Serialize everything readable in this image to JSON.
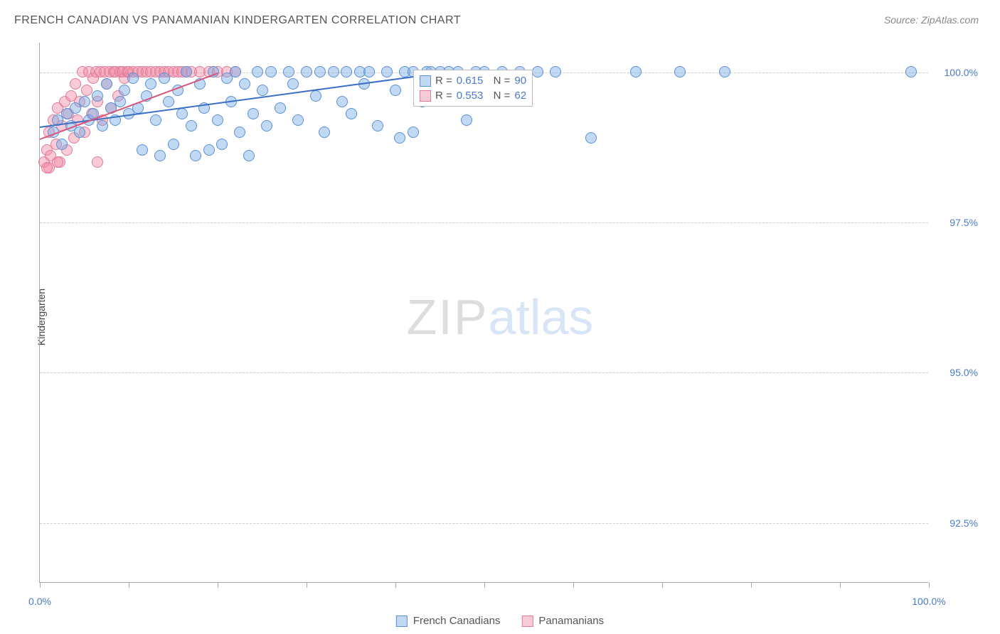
{
  "title": "FRENCH CANADIAN VS PANAMANIAN KINDERGARTEN CORRELATION CHART",
  "source": "Source: ZipAtlas.com",
  "y_axis_label": "Kindergarten",
  "watermark": {
    "part1": "ZIP",
    "part2": "atlas"
  },
  "chart": {
    "type": "scatter",
    "xlim": [
      0,
      100
    ],
    "ylim": [
      91.5,
      100.5
    ],
    "y_ticks": [
      {
        "value": 100.0,
        "label": "100.0%"
      },
      {
        "value": 97.5,
        "label": "97.5%"
      },
      {
        "value": 95.0,
        "label": "95.0%"
      },
      {
        "value": 92.5,
        "label": "92.5%"
      }
    ],
    "x_ticks": [
      0,
      10,
      20,
      30,
      40,
      50,
      60,
      70,
      80,
      90,
      100
    ],
    "x_tick_labels": [
      {
        "value": 0,
        "label": "0.0%"
      },
      {
        "value": 100,
        "label": "100.0%"
      }
    ],
    "background_color": "#ffffff",
    "grid_color": "#cccccc",
    "series": [
      {
        "name": "French Canadians",
        "marker_fill": "rgba(120,170,230,0.45)",
        "marker_stroke": "#5b8fd6",
        "line_color": "#3a6fc5",
        "R": "0.615",
        "N": "90",
        "trend": {
          "x1": 0,
          "y1": 99.1,
          "x2": 45,
          "y2": 100.0
        },
        "points": [
          [
            1.5,
            99.0
          ],
          [
            2,
            99.2
          ],
          [
            2.5,
            98.8
          ],
          [
            3,
            99.3
          ],
          [
            3.5,
            99.1
          ],
          [
            4,
            99.4
          ],
          [
            4.5,
            99.0
          ],
          [
            5,
            99.5
          ],
          [
            5.5,
            99.2
          ],
          [
            6,
            99.3
          ],
          [
            6.5,
            99.6
          ],
          [
            7,
            99.1
          ],
          [
            7.5,
            99.8
          ],
          [
            8,
            99.4
          ],
          [
            8.5,
            99.2
          ],
          [
            9,
            99.5
          ],
          [
            9.5,
            99.7
          ],
          [
            10,
            99.3
          ],
          [
            10.5,
            99.9
          ],
          [
            11,
            99.4
          ],
          [
            11.5,
            98.7
          ],
          [
            12,
            99.6
          ],
          [
            12.5,
            99.8
          ],
          [
            13,
            99.2
          ],
          [
            13.5,
            98.6
          ],
          [
            14,
            99.9
          ],
          [
            14.5,
            99.5
          ],
          [
            15,
            98.8
          ],
          [
            15.5,
            99.7
          ],
          [
            16,
            99.3
          ],
          [
            16.5,
            100.0
          ],
          [
            17,
            99.1
          ],
          [
            17.5,
            98.6
          ],
          [
            18,
            99.8
          ],
          [
            18.5,
            99.4
          ],
          [
            19,
            98.7
          ],
          [
            19.5,
            100.0
          ],
          [
            20,
            99.2
          ],
          [
            20.5,
            98.8
          ],
          [
            21,
            99.9
          ],
          [
            21.5,
            99.5
          ],
          [
            22,
            100.0
          ],
          [
            22.5,
            99.0
          ],
          [
            23,
            99.8
          ],
          [
            23.5,
            98.6
          ],
          [
            24,
            99.3
          ],
          [
            24.5,
            100.0
          ],
          [
            25,
            99.7
          ],
          [
            25.5,
            99.1
          ],
          [
            26,
            100.0
          ],
          [
            27,
            99.4
          ],
          [
            28,
            100.0
          ],
          [
            28.5,
            99.8
          ],
          [
            29,
            99.2
          ],
          [
            30,
            100.0
          ],
          [
            31,
            99.6
          ],
          [
            31.5,
            100.0
          ],
          [
            32,
            99.0
          ],
          [
            33,
            100.0
          ],
          [
            34,
            99.5
          ],
          [
            34.5,
            100.0
          ],
          [
            35,
            99.3
          ],
          [
            36,
            100.0
          ],
          [
            36.5,
            99.8
          ],
          [
            37,
            100.0
          ],
          [
            38,
            99.1
          ],
          [
            39,
            100.0
          ],
          [
            40,
            99.7
          ],
          [
            40.5,
            98.9
          ],
          [
            41,
            100.0
          ],
          [
            42,
            100.0
          ],
          [
            43,
            99.5
          ],
          [
            43.5,
            100.0
          ],
          [
            44,
            100.0
          ],
          [
            45,
            100.0
          ],
          [
            46,
            100.0
          ],
          [
            47,
            100.0
          ],
          [
            48,
            99.2
          ],
          [
            49,
            100.0
          ],
          [
            50,
            100.0
          ],
          [
            52,
            100.0
          ],
          [
            54,
            100.0
          ],
          [
            56,
            100.0
          ],
          [
            58,
            100.0
          ],
          [
            62,
            98.9
          ],
          [
            67,
            100.0
          ],
          [
            72,
            100.0
          ],
          [
            77,
            100.0
          ],
          [
            98,
            100.0
          ],
          [
            42,
            99.0
          ]
        ]
      },
      {
        "name": "Panamanians",
        "marker_fill": "rgba(240,140,165,0.45)",
        "marker_stroke": "#e07a98",
        "line_color": "#d8557a",
        "R": "0.553",
        "N": "62",
        "trend": {
          "x1": 0,
          "y1": 98.9,
          "x2": 20,
          "y2": 100.0
        },
        "points": [
          [
            0.5,
            98.5
          ],
          [
            0.8,
            98.7
          ],
          [
            1,
            99.0
          ],
          [
            1.2,
            98.6
          ],
          [
            1.5,
            99.2
          ],
          [
            1.8,
            98.8
          ],
          [
            2,
            99.4
          ],
          [
            2.2,
            98.5
          ],
          [
            2.5,
            99.1
          ],
          [
            2.8,
            99.5
          ],
          [
            3,
            98.7
          ],
          [
            3.2,
            99.3
          ],
          [
            3.5,
            99.6
          ],
          [
            3.8,
            98.9
          ],
          [
            4,
            99.8
          ],
          [
            4.2,
            99.2
          ],
          [
            4.5,
            99.5
          ],
          [
            4.8,
            100.0
          ],
          [
            5,
            99.0
          ],
          [
            5.3,
            99.7
          ],
          [
            5.5,
            100.0
          ],
          [
            5.8,
            99.3
          ],
          [
            6,
            99.9
          ],
          [
            6.3,
            100.0
          ],
          [
            6.5,
            99.5
          ],
          [
            6.8,
            100.0
          ],
          [
            7,
            99.2
          ],
          [
            7.3,
            100.0
          ],
          [
            7.5,
            99.8
          ],
          [
            7.8,
            100.0
          ],
          [
            8,
            99.4
          ],
          [
            8.3,
            100.0
          ],
          [
            8.5,
            100.0
          ],
          [
            8.8,
            99.6
          ],
          [
            9,
            100.0
          ],
          [
            9.3,
            100.0
          ],
          [
            9.5,
            99.9
          ],
          [
            9.8,
            100.0
          ],
          [
            10,
            100.0
          ],
          [
            10.5,
            100.0
          ],
          [
            11,
            100.0
          ],
          [
            11.5,
            100.0
          ],
          [
            12,
            100.0
          ],
          [
            12.5,
            100.0
          ],
          [
            13,
            100.0
          ],
          [
            13.5,
            100.0
          ],
          [
            14,
            100.0
          ],
          [
            14.5,
            100.0
          ],
          [
            15,
            100.0
          ],
          [
            15.5,
            100.0
          ],
          [
            16,
            100.0
          ],
          [
            16.5,
            100.0
          ],
          [
            17,
            100.0
          ],
          [
            18,
            100.0
          ],
          [
            19,
            100.0
          ],
          [
            20,
            100.0
          ],
          [
            21,
            100.0
          ],
          [
            22,
            100.0
          ],
          [
            1,
            98.4
          ],
          [
            2,
            98.5
          ],
          [
            6.5,
            98.5
          ],
          [
            0.8,
            98.4
          ]
        ]
      }
    ],
    "legend_box": {
      "rows": [
        {
          "swatch_fill": "rgba(120,170,230,0.45)",
          "swatch_stroke": "#5b8fd6",
          "R": "0.615",
          "N": "90"
        },
        {
          "swatch_fill": "rgba(240,140,165,0.45)",
          "swatch_stroke": "#e07a98",
          "R": "0.553",
          "N": "62"
        }
      ]
    },
    "bottom_legend": [
      {
        "swatch_fill": "rgba(120,170,230,0.45)",
        "swatch_stroke": "#5b8fd6",
        "label": "French Canadians"
      },
      {
        "swatch_fill": "rgba(240,140,165,0.45)",
        "swatch_stroke": "#e07a98",
        "label": "Panamanians"
      }
    ]
  }
}
